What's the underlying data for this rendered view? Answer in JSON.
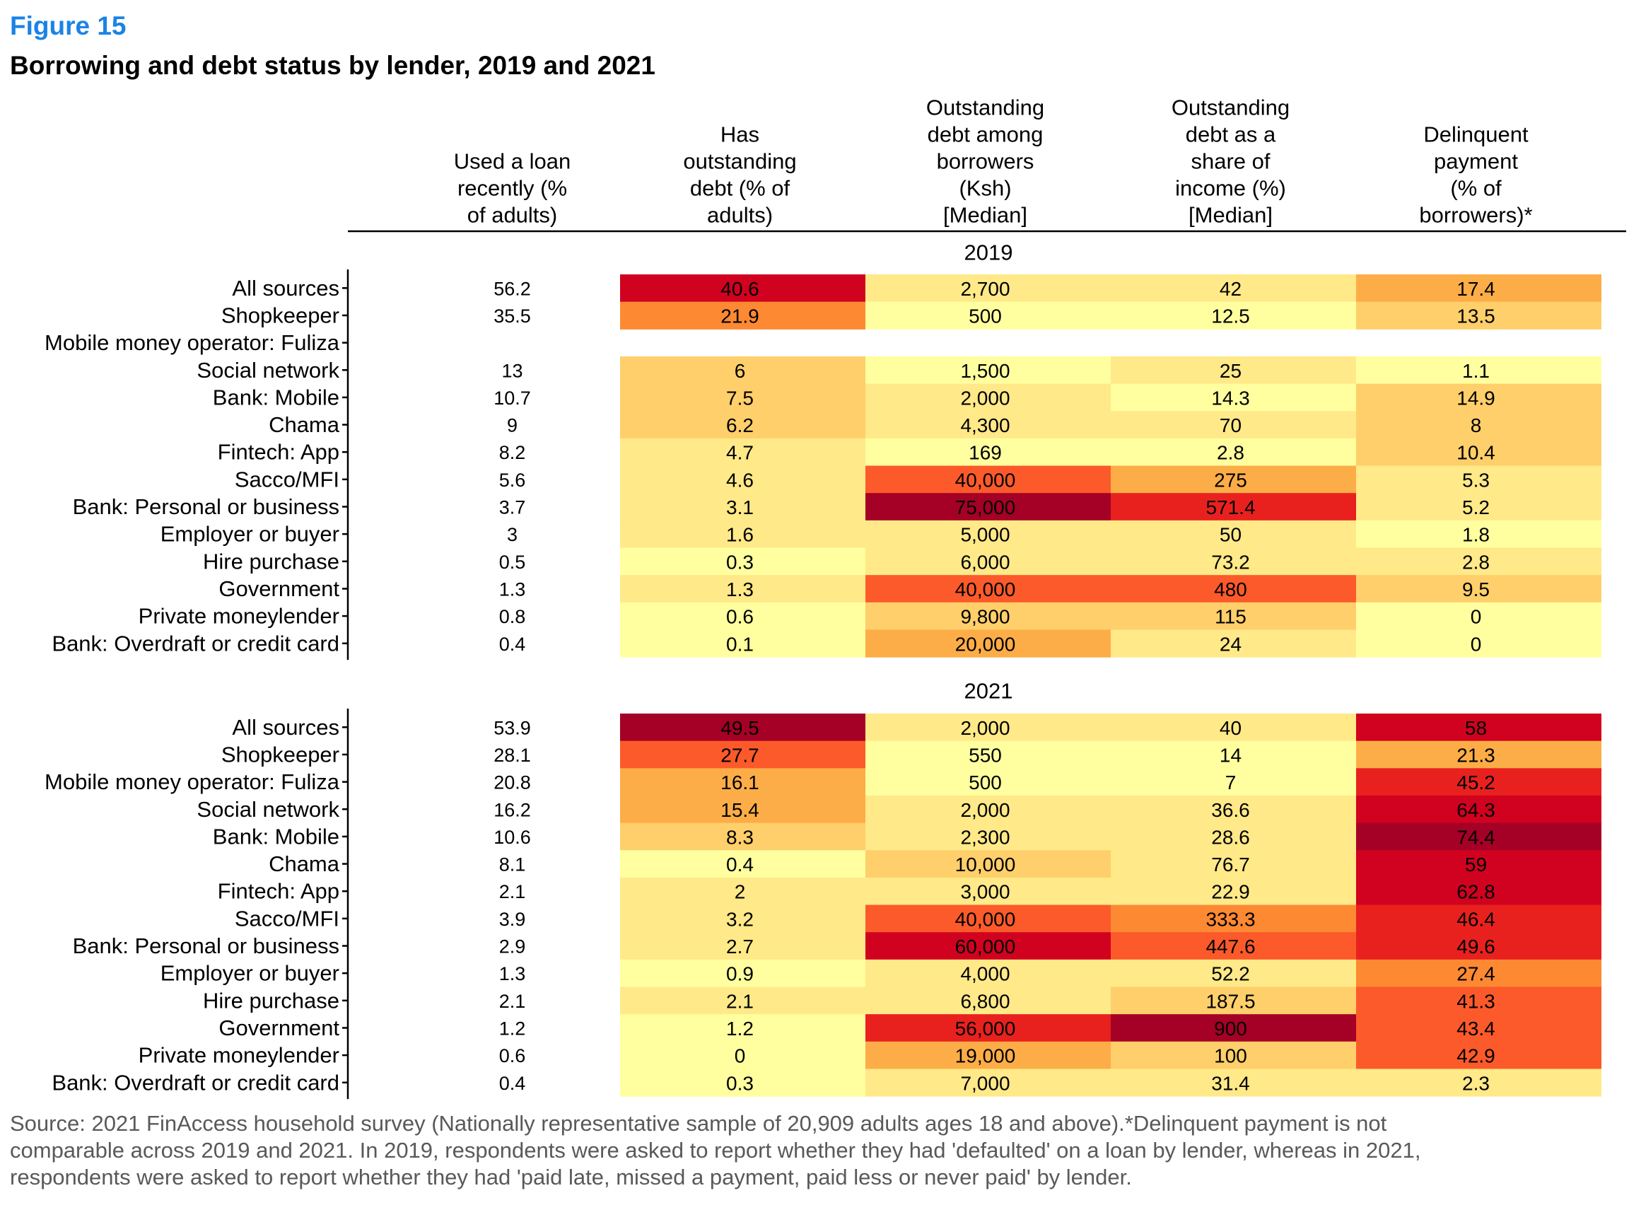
{
  "figure": {
    "label": "Figure 15",
    "title": "Borrowing and debt status by lender, 2019 and 2021",
    "caption": "Source: 2021 FinAccess household survey (Nationally representative sample of 20,909 adults ages 18 and above).*Delinquent payment is not comparable across 2019 and 2021. In 2019, respondents were asked to report whether they had 'defaulted' on a loan by lender, whereas in 2021, respondents were asked to report whether they had 'paid late, missed a payment, paid less or never paid' by lender."
  },
  "colors": {
    "scale": [
      "#ffffa0",
      "#ffe989",
      "#fecf6a",
      "#fdad47",
      "#fd8933",
      "#fc5a2a",
      "#e8211f",
      "#d0021f",
      "#a50026"
    ]
  },
  "chart_data": {
    "type": "heatmap",
    "columns": [
      [
        "Used a loan",
        "recently (%",
        "of adults)"
      ],
      [
        "Has",
        "outstanding",
        "debt (% of",
        "adults)"
      ],
      [
        "Outstanding",
        "debt among",
        "borrowers",
        "(Ksh)",
        "[Median]"
      ],
      [
        "Outstanding",
        "debt as a",
        "share of",
        "income (%)",
        "[Median]"
      ],
      [
        "Delinquent",
        "payment",
        "(% of",
        "borrowers)*"
      ]
    ],
    "rows": [
      "All sources",
      "Shopkeeper",
      "Mobile money operator: Fuliza",
      "Social network",
      "Bank: Mobile",
      "Chama",
      "Fintech: App",
      "Sacco/MFI",
      "Bank: Personal or business",
      "Employer or buyer",
      "Hire purchase",
      "Government",
      "Private moneylender",
      "Bank: Overdraft or credit card"
    ],
    "panels": [
      {
        "year": "2019",
        "values": [
          [
            "56.2",
            "40.6",
            "2,700",
            "42",
            "17.4"
          ],
          [
            "35.5",
            "21.9",
            "500",
            "12.5",
            "13.5"
          ],
          [
            "",
            "",
            "",
            "",
            ""
          ],
          [
            "13",
            "6",
            "1,500",
            "25",
            "1.1"
          ],
          [
            "10.7",
            "7.5",
            "2,000",
            "14.3",
            "14.9"
          ],
          [
            "9",
            "6.2",
            "4,300",
            "70",
            "8"
          ],
          [
            "8.2",
            "4.7",
            "169",
            "2.8",
            "10.4"
          ],
          [
            "5.6",
            "4.6",
            "40,000",
            "275",
            "5.3"
          ],
          [
            "3.7",
            "3.1",
            "75,000",
            "571.4",
            "5.2"
          ],
          [
            "3",
            "1.6",
            "5,000",
            "50",
            "1.8"
          ],
          [
            "0.5",
            "0.3",
            "6,000",
            "73.2",
            "2.8"
          ],
          [
            "1.3",
            "1.3",
            "40,000",
            "480",
            "9.5"
          ],
          [
            "0.8",
            "0.6",
            "9,800",
            "115",
            "0"
          ],
          [
            "0.4",
            "0.1",
            "20,000",
            "24",
            "0"
          ]
        ]
      },
      {
        "year": "2021",
        "values": [
          [
            "53.9",
            "49.5",
            "2,000",
            "40",
            "58"
          ],
          [
            "28.1",
            "27.7",
            "550",
            "14",
            "21.3"
          ],
          [
            "20.8",
            "16.1",
            "500",
            "7",
            "45.2"
          ],
          [
            "16.2",
            "15.4",
            "2,000",
            "36.6",
            "64.3"
          ],
          [
            "10.6",
            "8.3",
            "2,300",
            "28.6",
            "74.4"
          ],
          [
            "8.1",
            "0.4",
            "10,000",
            "76.7",
            "59"
          ],
          [
            "2.1",
            "2",
            "3,000",
            "22.9",
            "62.8"
          ],
          [
            "3.9",
            "3.2",
            "40,000",
            "333.3",
            "46.4"
          ],
          [
            "2.9",
            "2.7",
            "60,000",
            "447.6",
            "49.6"
          ],
          [
            "1.3",
            "0.9",
            "4,000",
            "52.2",
            "27.4"
          ],
          [
            "2.1",
            "2.1",
            "6,800",
            "187.5",
            "41.3"
          ],
          [
            "1.2",
            "1.2",
            "56,000",
            "900",
            "43.4"
          ],
          [
            "0.6",
            "0",
            "19,000",
            "100",
            "42.9"
          ],
          [
            "0.4",
            "0.3",
            "7,000",
            "31.4",
            "2.3"
          ]
        ]
      }
    ]
  }
}
